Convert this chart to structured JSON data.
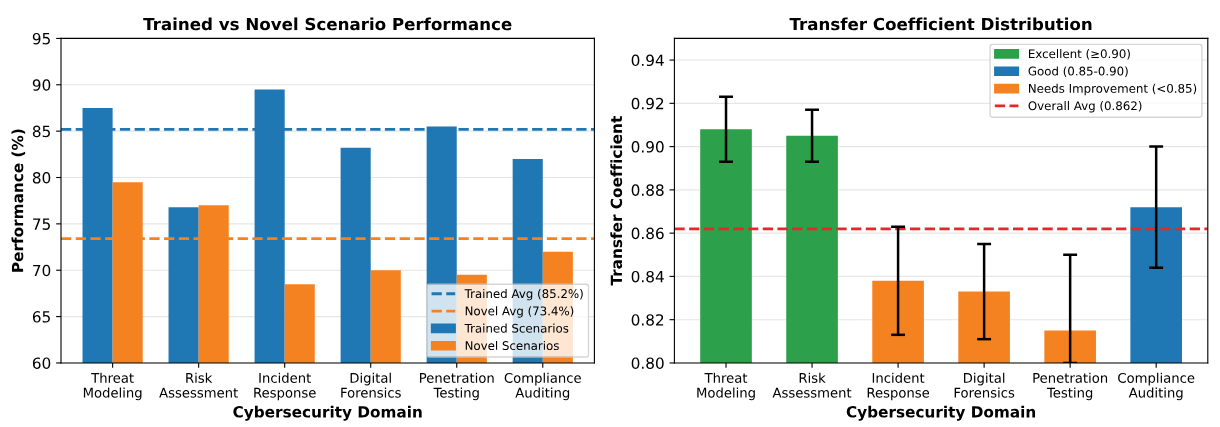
{
  "chart_data": [
    {
      "type": "bar",
      "title": "Trained vs Novel Scenario Performance",
      "xlabel": "Cybersecurity Domain",
      "ylabel": "Performance (%)",
      "categories": [
        "Threat\nModeling",
        "Risk\nAssessment",
        "Incident\nResponse",
        "Digital\nForensics",
        "Penetration\nTesting",
        "Compliance\nAuditing"
      ],
      "series": [
        {
          "name": "Trained Scenarios",
          "color": "#1f77b4",
          "values": [
            87.5,
            76.8,
            89.5,
            83.2,
            85.5,
            82.0
          ]
        },
        {
          "name": "Novel Scenarios",
          "color": "#f58220",
          "values": [
            79.5,
            77.0,
            68.5,
            70.0,
            69.5,
            72.0
          ]
        }
      ],
      "ref_lines": [
        {
          "axis": "y",
          "value": 85.2,
          "label": "Trained Avg (85.2%)",
          "color": "#1f77b4",
          "line_style": "dashed"
        },
        {
          "axis": "y",
          "value": 73.4,
          "label": "Novel Avg (73.4%)",
          "color": "#f58220",
          "line_style": "dashed"
        }
      ],
      "ylim": [
        60,
        95
      ],
      "yticks": [
        60,
        65,
        70,
        75,
        80,
        85,
        90,
        95
      ],
      "grid": "y",
      "legend": "bottom right"
    },
    {
      "type": "bar",
      "title": "Transfer Coefficient Distribution",
      "xlabel": "Cybersecurity Domain",
      "ylabel": "Transfer Coefficient",
      "categories": [
        "Threat\nModeling",
        "Risk\nAssessment",
        "Incident\nResponse",
        "Digital\nForensics",
        "Penetration\nTesting",
        "Compliance\nAuditing"
      ],
      "stacked": true,
      "series": [
        {
          "name": "Excellent (≥0.90)",
          "color": "#2ca04a",
          "values": [
            0.908,
            0.905,
            null,
            null,
            null,
            null
          ],
          "errors": [
            [
              0.893,
              0.923
            ],
            [
              0.893,
              0.917
            ],
            null,
            null,
            null,
            null
          ]
        },
        {
          "name": "Good (0.85-0.90)",
          "color": "#1f77b4",
          "values": [
            null,
            null,
            null,
            null,
            null,
            0.872
          ],
          "errors": [
            null,
            null,
            null,
            null,
            null,
            [
              0.844,
              0.9
            ]
          ]
        },
        {
          "name": "Needs Improvement (<0.85)",
          "color": "#f58220",
          "values": [
            null,
            null,
            0.838,
            0.833,
            0.815,
            null
          ],
          "errors": [
            null,
            null,
            [
              0.813,
              0.863
            ],
            [
              0.811,
              0.855
            ],
            [
              0.8,
              0.85
            ],
            null
          ]
        }
      ],
      "ref_lines": [
        {
          "axis": "y",
          "value": 0.862,
          "label": "Overall Avg (0.862)",
          "color": "#e8262a",
          "line_style": "dashed"
        }
      ],
      "ylim": [
        0.8,
        0.95
      ],
      "yticks": [
        {
          "value": 0.8,
          "label": "0.80"
        },
        {
          "value": 0.82,
          "label": "0.82"
        },
        {
          "value": 0.84,
          "label": "0.84"
        },
        {
          "value": 0.86,
          "label": "0.86"
        },
        {
          "value": 0.88,
          "label": "0.88"
        },
        {
          "value": 0.9,
          "label": "0.90"
        },
        {
          "value": 0.92,
          "label": "0.92"
        },
        {
          "value": 0.94,
          "label": "0.94"
        }
      ],
      "grid": "y",
      "legend": "top right"
    }
  ]
}
